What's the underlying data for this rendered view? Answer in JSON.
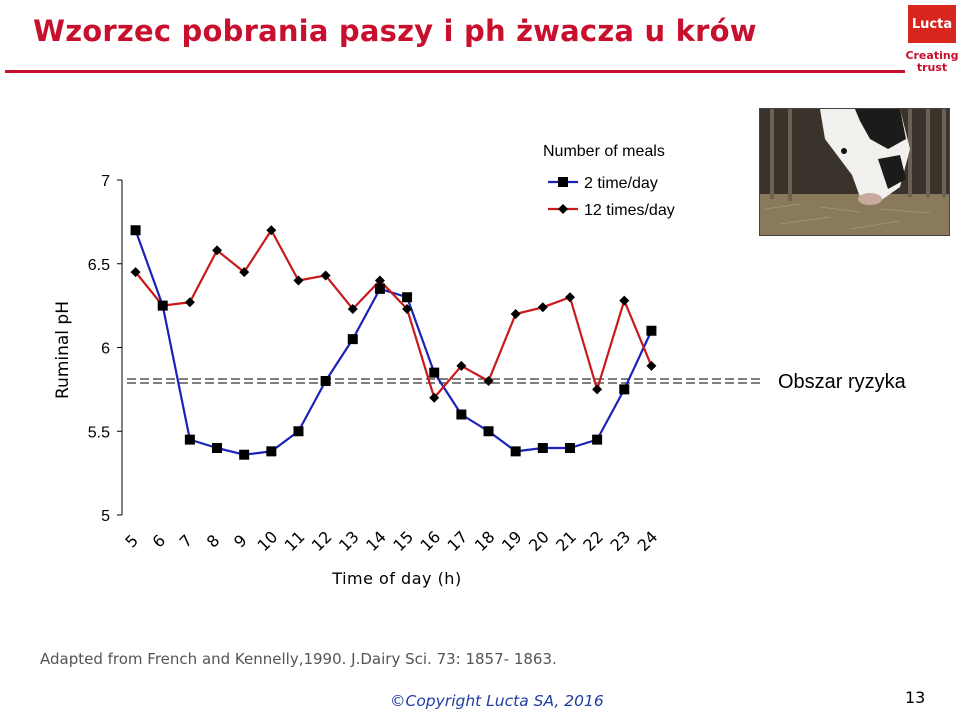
{
  "slide": {
    "title": "Wzorzec pobrania paszy i ph żwacza u krów",
    "logo_text": "Lucta",
    "tagline_line1": "Creating",
    "tagline_line2": "trust",
    "attribution": "Adapted from French and Kennelly,1990. J.Dairy Sci. 73: 1857- 1863.",
    "copyright": "©Copyright Lucta SA, 2016",
    "page_number": "13"
  },
  "colors": {
    "brand_red": "#c8102e",
    "series_blue": "#1a22b8",
    "series_red": "#c8191b",
    "copyright_blue": "#1f3fa0"
  },
  "chart_data": {
    "type": "line",
    "xlabel": "Time of day (h)",
    "ylabel": "Ruminal pH",
    "x": [
      5,
      6,
      7,
      8,
      9,
      10,
      11,
      12,
      13,
      14,
      15,
      16,
      17,
      18,
      19,
      20,
      21,
      22,
      23,
      24
    ],
    "ylim": [
      5,
      7
    ],
    "yticks": [
      5,
      5.5,
      6,
      6.5,
      7
    ],
    "ytick_labels": [
      "5",
      "5.5",
      "6",
      "6.5",
      "7"
    ],
    "legend_title": "Number of meals",
    "series": [
      {
        "name": "2 time/day",
        "marker": "square",
        "color": "#1a22b8",
        "values": [
          6.7,
          6.25,
          5.45,
          5.4,
          5.36,
          5.38,
          5.5,
          5.8,
          6.05,
          6.35,
          6.3,
          5.85,
          5.6,
          5.5,
          5.38,
          5.4,
          5.4,
          5.45,
          5.75,
          6.1
        ]
      },
      {
        "name": "12 times/day",
        "marker": "diamond",
        "color": "#c8191b",
        "values": [
          6.45,
          6.25,
          6.27,
          6.58,
          6.45,
          6.7,
          6.4,
          6.43,
          6.23,
          6.4,
          6.23,
          5.7,
          5.89,
          5.8,
          6.2,
          6.24,
          6.3,
          5.75,
          6.28,
          5.89
        ]
      }
    ],
    "threshold": {
      "value": 5.8,
      "label": "Obszar ryzyka"
    }
  }
}
